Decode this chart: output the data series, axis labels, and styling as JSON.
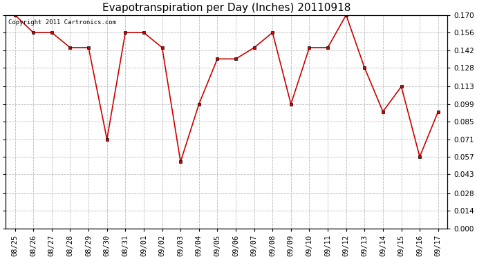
{
  "title": "Evapotranspiration per Day (Inches) 20110918",
  "copyright_text": "Copyright 2011 Cartronics.com",
  "x_labels": [
    "08/25",
    "08/26",
    "08/27",
    "08/28",
    "08/29",
    "08/30",
    "08/31",
    "09/01",
    "09/02",
    "09/03",
    "09/04",
    "09/05",
    "09/06",
    "09/07",
    "09/08",
    "09/09",
    "09/10",
    "09/11",
    "09/12",
    "09/13",
    "09/14",
    "09/15",
    "09/16",
    "09/17"
  ],
  "y_values": [
    0.17,
    0.156,
    0.156,
    0.144,
    0.144,
    0.071,
    0.156,
    0.156,
    0.144,
    0.053,
    0.099,
    0.135,
    0.135,
    0.144,
    0.156,
    0.099,
    0.144,
    0.144,
    0.17,
    0.128,
    0.093,
    0.113,
    0.057,
    0.093
  ],
  "ylim": [
    0.0,
    0.17
  ],
  "yticks": [
    0.0,
    0.014,
    0.028,
    0.043,
    0.057,
    0.071,
    0.085,
    0.099,
    0.113,
    0.128,
    0.142,
    0.156,
    0.17
  ],
  "line_color": "#cc0000",
  "marker": "s",
  "marker_size": 3,
  "bg_color": "#ffffff",
  "grid_color": "#bbbbbb",
  "title_fontsize": 11,
  "tick_fontsize": 7.5,
  "copyright_fontsize": 6.5
}
